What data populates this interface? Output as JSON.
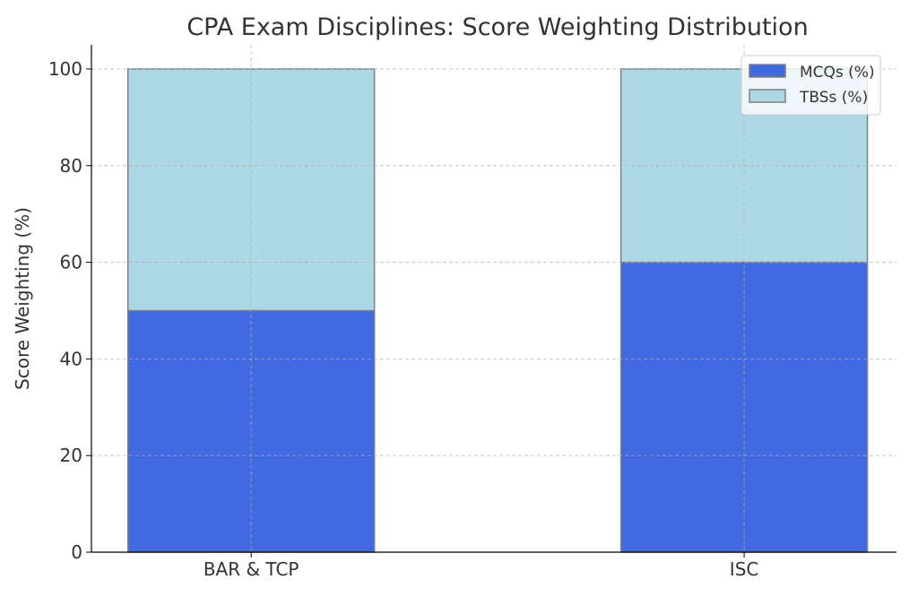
{
  "chart_data": {
    "type": "bar",
    "stacked": true,
    "title": "CPA Exam Disciplines: Score Weighting Distribution",
    "xlabel": "",
    "ylabel": "Score Weighting (%)",
    "categories": [
      "BAR & TCP",
      "ISC"
    ],
    "series": [
      {
        "name": "MCQs (%)",
        "values": [
          50,
          60
        ],
        "color": "#4169e1"
      },
      {
        "name": "TBSs (%)",
        "values": [
          50,
          40
        ],
        "color": "#add8e6"
      }
    ],
    "ylim": [
      0,
      105
    ],
    "yticks": [
      0,
      20,
      40,
      60,
      80,
      100
    ],
    "grid": true,
    "legend_position": "top-right",
    "edge_color": "#808080"
  }
}
